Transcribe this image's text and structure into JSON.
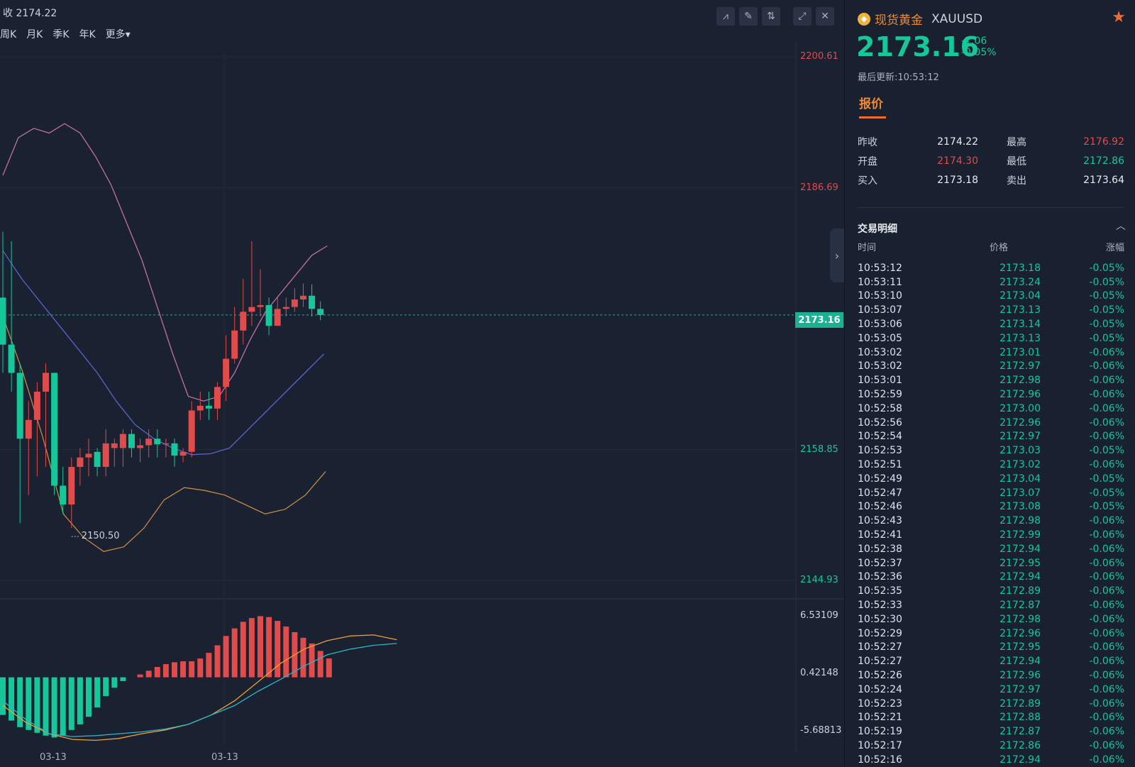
{
  "chart_header": {
    "prev_close_label": "收 2174.22",
    "periods": [
      "周K",
      "月K",
      "季K",
      "年K",
      "更多▾"
    ],
    "tools": [
      {
        "name": "indicator-tool",
        "glyph": "⩘"
      },
      {
        "name": "draw-tool",
        "glyph": "✎"
      },
      {
        "name": "compare-tool",
        "glyph": "⇅"
      },
      {
        "name": "expand-tool",
        "glyph": "⤢"
      },
      {
        "name": "close-tool",
        "glyph": "✕"
      }
    ]
  },
  "price_axis": {
    "labels": [
      {
        "text": "2200.61",
        "value": 2200.61,
        "color": "#e04b4b"
      },
      {
        "text": "2186.69",
        "value": 2186.69,
        "color": "#e04b4b"
      },
      {
        "text": "2158.85",
        "value": 2158.85,
        "color": "#16c79a"
      },
      {
        "text": "2144.93",
        "value": 2144.93,
        "color": "#16c79a"
      }
    ],
    "current": "2173.16",
    "low_marker": "2150.50"
  },
  "macd_axis": {
    "labels": [
      {
        "text": "6.53109",
        "value": 6.53109
      },
      {
        "text": "0.42148",
        "value": 0.42148
      },
      {
        "text": "-5.68813",
        "value": -5.68813
      }
    ]
  },
  "time_axis": {
    "labels": [
      "03-13",
      "03-13"
    ]
  },
  "chart_data": {
    "type": "line",
    "title": "",
    "y_range": [
      2144.93,
      2200.61
    ],
    "current_price": 2173.16,
    "low_marker": 2150.5,
    "candles": [
      {
        "o": 2175.0,
        "c": 2170.0,
        "h": 2182.0,
        "l": 2167.0
      },
      {
        "o": 2170.0,
        "c": 2167.0,
        "h": 2181.0,
        "l": 2165.0
      },
      {
        "o": 2167.0,
        "c": 2160.0,
        "h": 2168.0,
        "l": 2151.0
      },
      {
        "o": 2160.0,
        "c": 2162.0,
        "h": 2164.0,
        "l": 2154.0
      },
      {
        "o": 2162.0,
        "c": 2165.0,
        "h": 2166.0,
        "l": 2156.0
      },
      {
        "o": 2165.0,
        "c": 2167.0,
        "h": 2168.0,
        "l": 2157.0
      },
      {
        "o": 2167.0,
        "c": 2155.0,
        "h": 2167.0,
        "l": 2154.0
      },
      {
        "o": 2155.0,
        "c": 2153.0,
        "h": 2157.0,
        "l": 2152.0
      },
      {
        "o": 2153.0,
        "c": 2157.0,
        "h": 2158.0,
        "l": 2150.5
      },
      {
        "o": 2157.0,
        "c": 2158.0,
        "h": 2159.0,
        "l": 2155.0
      },
      {
        "o": 2158.0,
        "c": 2158.4,
        "h": 2160.0,
        "l": 2156.0
      },
      {
        "o": 2158.6,
        "c": 2157.0,
        "h": 2159.0,
        "l": 2156.0
      },
      {
        "o": 2157.0,
        "c": 2159.5,
        "h": 2161.0,
        "l": 2156.0
      },
      {
        "o": 2159.0,
        "c": 2159.5,
        "h": 2160.0,
        "l": 2157.0
      },
      {
        "o": 2159.0,
        "c": 2160.5,
        "h": 2161.0,
        "l": 2157.0
      },
      {
        "o": 2160.5,
        "c": 2159.0,
        "h": 2161.0,
        "l": 2158.0
      },
      {
        "o": 2159.0,
        "c": 2159.3,
        "h": 2160.0,
        "l": 2157.5
      },
      {
        "o": 2159.3,
        "c": 2160.0,
        "h": 2161.0,
        "l": 2158.0
      },
      {
        "o": 2160.0,
        "c": 2159.4,
        "h": 2161.0,
        "l": 2158.0
      },
      {
        "o": 2159.4,
        "c": 2159.5,
        "h": 2160.0,
        "l": 2158.0
      },
      {
        "o": 2159.5,
        "c": 2158.2,
        "h": 2160.0,
        "l": 2157.0
      },
      {
        "o": 2158.2,
        "c": 2158.6,
        "h": 2159.0,
        "l": 2157.5
      },
      {
        "o": 2158.6,
        "c": 2163.0,
        "h": 2164.0,
        "l": 2158.0
      },
      {
        "o": 2163.0,
        "c": 2163.5,
        "h": 2165.0,
        "l": 2162.0
      },
      {
        "o": 2163.5,
        "c": 2163.2,
        "h": 2165.0,
        "l": 2162.0
      },
      {
        "o": 2163.2,
        "c": 2165.5,
        "h": 2166.0,
        "l": 2162.0
      },
      {
        "o": 2165.5,
        "c": 2168.5,
        "h": 2171.0,
        "l": 2164.0
      },
      {
        "o": 2168.5,
        "c": 2171.5,
        "h": 2174.0,
        "l": 2168.0
      },
      {
        "o": 2171.5,
        "c": 2173.5,
        "h": 2177.0,
        "l": 2170.0
      },
      {
        "o": 2173.5,
        "c": 2174.0,
        "h": 2181.0,
        "l": 2172.0
      },
      {
        "o": 2174.0,
        "c": 2174.2,
        "h": 2178.0,
        "l": 2173.0
      },
      {
        "o": 2174.2,
        "c": 2172.0,
        "h": 2175.0,
        "l": 2171.0
      },
      {
        "o": 2172.0,
        "c": 2173.8,
        "h": 2175.0,
        "l": 2172.0
      },
      {
        "o": 2173.8,
        "c": 2174.0,
        "h": 2175.0,
        "l": 2173.0
      },
      {
        "o": 2174.0,
        "c": 2174.8,
        "h": 2176.0,
        "l": 2173.5
      },
      {
        "o": 2174.8,
        "c": 2175.2,
        "h": 2176.5,
        "l": 2174.0
      },
      {
        "o": 2175.2,
        "c": 2173.8,
        "h": 2176.4,
        "l": 2173.0
      },
      {
        "o": 2173.8,
        "c": 2173.16,
        "h": 2174.6,
        "l": 2172.6
      }
    ],
    "boll_upper": [
      2188.0,
      2192.0,
      2193.0,
      2192.5,
      2193.5,
      2192.5,
      2190.0,
      2187.0,
      2183.0,
      2179.0,
      2174.0,
      2169.0,
      2164.5,
      2164.0,
      2164.5,
      2167.0,
      2170.5,
      2173.5,
      2175.5,
      2177.5,
      2179.5,
      2180.5
    ],
    "boll_mid": [
      2180.0,
      2177.0,
      2174.5,
      2172.0,
      2169.5,
      2167.0,
      2164.0,
      2161.5,
      2160.0,
      2159.0,
      2158.3,
      2158.4,
      2159.0,
      2161.0,
      2163.0,
      2165.0,
      2167.0,
      2169.0
    ],
    "boll_lower": [
      2173.0,
      2167.0,
      2160.0,
      2152.0,
      2149.5,
      2148.0,
      2148.5,
      2150.5,
      2153.5,
      2154.8,
      2154.5,
      2154.0,
      2153.0,
      2152.0,
      2152.5,
      2154.0,
      2156.5
    ],
    "macd_hist": [
      -4.0,
      -4.6,
      -5.3,
      -5.6,
      -5.9,
      -6.2,
      -6.4,
      -6.2,
      -5.6,
      -5.0,
      -4.2,
      -3.2,
      -2.0,
      -1.1,
      -0.4,
      0.0,
      0.3,
      0.7,
      1.1,
      1.4,
      1.6,
      1.7,
      1.7,
      2.0,
      2.6,
      3.4,
      4.4,
      5.2,
      5.9,
      6.3,
      6.5,
      6.4,
      6.0,
      5.4,
      4.8,
      4.2,
      3.6,
      2.8,
      2.0
    ],
    "dif_line": [
      -3.0,
      -4.8,
      -6.0,
      -6.6,
      -6.7,
      -6.5,
      -6.0,
      -5.6,
      -5.0,
      -4.0,
      -2.5,
      -0.5,
      1.5,
      3.0,
      3.9,
      4.4,
      4.5,
      4.0
    ],
    "dea_line": [
      -2.5,
      -4.5,
      -6.0,
      -6.3,
      -6.2,
      -6.0,
      -5.8,
      -5.5,
      -5.0,
      -4.0,
      -3.0,
      -1.5,
      -0.2,
      1.2,
      2.4,
      3.0,
      3.4,
      3.6
    ]
  },
  "panel": {
    "instrument_cn": "现货黄金",
    "instrument_code": "XAUUSD",
    "price": "2173.16",
    "change_abs": "-1.06",
    "change_pct": "-0.05%",
    "updated": "最后更新:10:53:12",
    "tab": "报价",
    "quote": [
      {
        "l1": "昨收",
        "v1": "2174.22",
        "c1": "white",
        "l2": "最高",
        "v2": "2176.92",
        "c2": "red"
      },
      {
        "l1": "开盘",
        "v1": "2174.30",
        "c1": "red",
        "l2": "最低",
        "v2": "2172.86",
        "c2": "green"
      },
      {
        "l1": "买入",
        "v1": "2173.18",
        "c1": "white",
        "l2": "卖出",
        "v2": "2173.64",
        "c2": "white"
      }
    ],
    "trades_title": "交易明细",
    "trades_head": {
      "time": "时间",
      "price": "价格",
      "chg": "涨幅"
    },
    "trades": [
      [
        "10:53:12",
        "2173.18",
        "-0.05%"
      ],
      [
        "10:53:11",
        "2173.24",
        "-0.05%"
      ],
      [
        "10:53:10",
        "2173.04",
        "-0.05%"
      ],
      [
        "10:53:07",
        "2173.13",
        "-0.05%"
      ],
      [
        "10:53:06",
        "2173.14",
        "-0.05%"
      ],
      [
        "10:53:05",
        "2173.13",
        "-0.05%"
      ],
      [
        "10:53:02",
        "2173.01",
        "-0.06%"
      ],
      [
        "10:53:02",
        "2172.97",
        "-0.06%"
      ],
      [
        "10:53:01",
        "2172.98",
        "-0.06%"
      ],
      [
        "10:52:59",
        "2172.96",
        "-0.06%"
      ],
      [
        "10:52:58",
        "2173.00",
        "-0.06%"
      ],
      [
        "10:52:56",
        "2172.96",
        "-0.06%"
      ],
      [
        "10:52:54",
        "2172.97",
        "-0.06%"
      ],
      [
        "10:52:53",
        "2173.03",
        "-0.05%"
      ],
      [
        "10:52:51",
        "2173.02",
        "-0.06%"
      ],
      [
        "10:52:49",
        "2173.04",
        "-0.05%"
      ],
      [
        "10:52:47",
        "2173.07",
        "-0.05%"
      ],
      [
        "10:52:46",
        "2173.08",
        "-0.05%"
      ],
      [
        "10:52:43",
        "2172.98",
        "-0.06%"
      ],
      [
        "10:52:41",
        "2172.99",
        "-0.06%"
      ],
      [
        "10:52:38",
        "2172.94",
        "-0.06%"
      ],
      [
        "10:52:37",
        "2172.95",
        "-0.06%"
      ],
      [
        "10:52:36",
        "2172.94",
        "-0.06%"
      ],
      [
        "10:52:35",
        "2172.89",
        "-0.06%"
      ],
      [
        "10:52:33",
        "2172.87",
        "-0.06%"
      ],
      [
        "10:52:30",
        "2172.98",
        "-0.06%"
      ],
      [
        "10:52:29",
        "2172.96",
        "-0.06%"
      ],
      [
        "10:52:27",
        "2172.95",
        "-0.06%"
      ],
      [
        "10:52:27",
        "2172.94",
        "-0.06%"
      ],
      [
        "10:52:26",
        "2172.96",
        "-0.06%"
      ],
      [
        "10:52:24",
        "2172.97",
        "-0.06%"
      ],
      [
        "10:52:23",
        "2172.89",
        "-0.06%"
      ],
      [
        "10:52:21",
        "2172.88",
        "-0.06%"
      ],
      [
        "10:52:19",
        "2172.87",
        "-0.06%"
      ],
      [
        "10:52:17",
        "2172.86",
        "-0.06%"
      ],
      [
        "10:52:16",
        "2172.94",
        "-0.06%"
      ]
    ]
  }
}
